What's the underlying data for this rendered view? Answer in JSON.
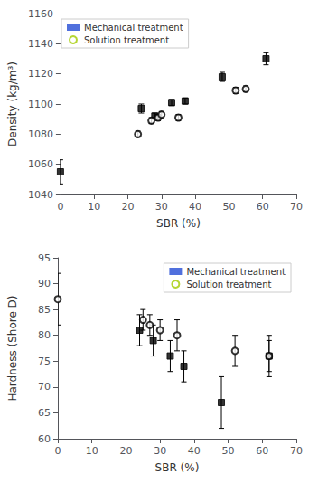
{
  "chart_data": [
    {
      "type": "scatter",
      "xlabel": "SBR (%)",
      "ylabel": "Density (kg/m³)",
      "xlim": [
        0,
        70
      ],
      "ylim": [
        1040,
        1160
      ],
      "xticks": [
        0,
        10,
        20,
        30,
        40,
        50,
        60,
        70
      ],
      "yticks": [
        1040,
        1060,
        1080,
        1100,
        1120,
        1140,
        1160
      ],
      "grid": false,
      "legend": "upper left",
      "series": [
        {
          "name": "Mechanical treatment",
          "marker": "square",
          "color": "black",
          "x": [
            0,
            24,
            28,
            33,
            37,
            48,
            61
          ],
          "values": [
            1055,
            1097,
            1092,
            1101,
            1102,
            1118,
            1130
          ],
          "yerr": [
            8,
            3,
            2,
            2,
            2,
            3,
            4
          ]
        },
        {
          "name": "Solution treatment",
          "marker": "open_circle",
          "color": "black",
          "x": [
            23,
            27,
            29,
            30,
            35,
            52,
            55
          ],
          "values": [
            1080,
            1089,
            1091,
            1093,
            1091,
            1109,
            1110
          ],
          "yerr": [
            2,
            2,
            2,
            2,
            2,
            2,
            2
          ]
        }
      ]
    },
    {
      "type": "scatter",
      "xlabel": "SBR (%)",
      "ylabel": "Hardness (Shore D)",
      "xlim": [
        0,
        70
      ],
      "ylim": [
        60,
        95
      ],
      "xticks": [
        0,
        10,
        20,
        30,
        40,
        50,
        60,
        70
      ],
      "yticks": [
        60,
        65,
        70,
        75,
        80,
        85,
        90,
        95
      ],
      "grid": false,
      "legend": "upper right",
      "series": [
        {
          "name": "Mechanical treatment",
          "marker": "square",
          "color": "black",
          "x": [
            24,
            28,
            33,
            37,
            48,
            62
          ],
          "values": [
            81,
            79,
            76,
            74,
            67,
            76
          ],
          "yerr": [
            3,
            3,
            3,
            3,
            5,
            4
          ]
        },
        {
          "name": "Solution treatment",
          "marker": "open_circle",
          "color": "black",
          "x": [
            0,
            25,
            27,
            30,
            35,
            52,
            62
          ],
          "values": [
            87,
            83,
            82,
            81,
            80,
            77,
            76
          ],
          "yerr": [
            5,
            2,
            2,
            2,
            3,
            3,
            3
          ]
        }
      ]
    }
  ]
}
